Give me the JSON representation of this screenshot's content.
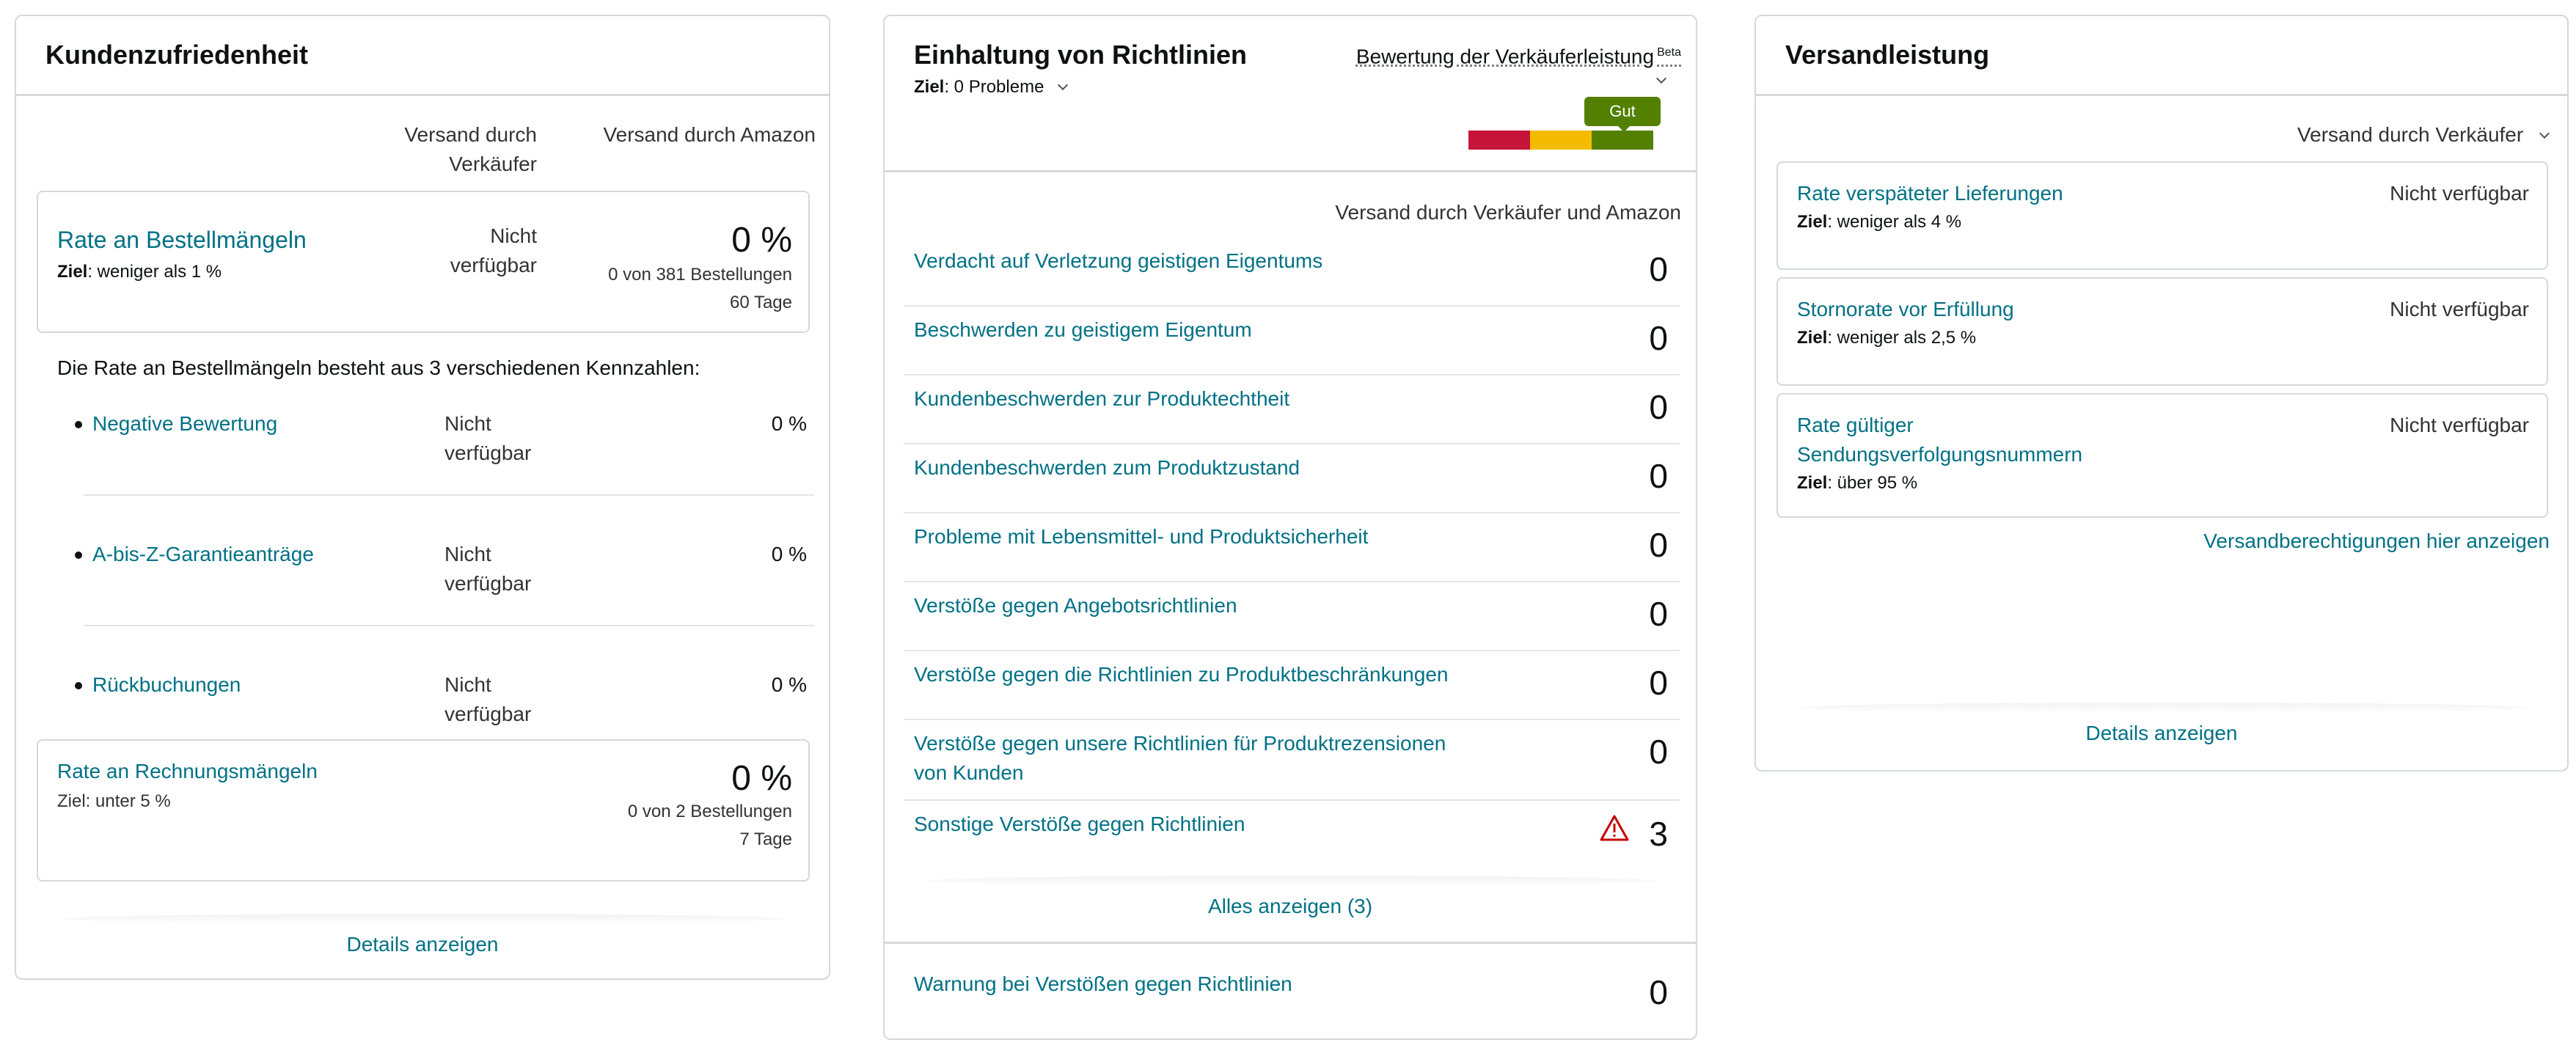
{
  "customer": {
    "title": "Kundenzufriedenheit",
    "col_seller": [
      "Versand durch",
      "Verkäufer"
    ],
    "col_amazon": "Versand durch Amazon",
    "odr": {
      "label": "Rate an Bestellmängeln",
      "target_label": "Ziel",
      "target_value": ": weniger als 1 %",
      "seller_value": [
        "Nicht",
        "verfügbar"
      ],
      "amazon_value": "0 %",
      "orders": "0 von 381 Bestellungen",
      "period": "60 Tage"
    },
    "composition_text": "Die Rate an Bestellmängeln besteht aus 3 verschiedenen Kennzahlen:",
    "metrics": [
      {
        "label": "Negative Bewertung",
        "seller": [
          "Nicht",
          "verfügbar"
        ],
        "amazon": "0 %"
      },
      {
        "label": "A-bis-Z-Garantieanträge",
        "seller": [
          "Nicht",
          "verfügbar"
        ],
        "amazon": "0 %"
      },
      {
        "label": "Rückbuchungen",
        "seller": [
          "Nicht",
          "verfügbar"
        ],
        "amazon": "0 %"
      }
    ],
    "invoice": {
      "label": "Rate an Rechnungsmängeln",
      "target": "Ziel: unter 5 %",
      "value": "0 %",
      "orders": "0 von 2 Bestellungen",
      "period": "7 Tage"
    },
    "details_link": "Details anzeigen"
  },
  "policy": {
    "title": "Einhaltung von Richtlinien",
    "target_label": "Ziel",
    "target_value": ": 0 Probleme",
    "rating_label": "Bewertung der Verkäuferleistung",
    "beta": "Beta",
    "rating_badge": "Gut",
    "rating_level": "Gut",
    "bar_colors": [
      "#c7143a",
      "#f5bb00",
      "#538000"
    ],
    "column_header": "Versand durch Verkäufer und Amazon",
    "items": [
      {
        "label": [
          "Verdacht auf Verletzung geistigen Eigentums"
        ],
        "value": "0"
      },
      {
        "label": [
          "Beschwerden zu geistigem Eigentum"
        ],
        "value": "0"
      },
      {
        "label": [
          "Kundenbeschwerden zur Produktechtheit"
        ],
        "value": "0"
      },
      {
        "label": [
          "Kundenbeschwerden zum Produktzustand"
        ],
        "value": "0"
      },
      {
        "label": [
          "Probleme mit Lebensmittel- und Produktsicherheit"
        ],
        "value": "0"
      },
      {
        "label": [
          "Verstöße gegen Angebotsrichtlinien"
        ],
        "value": "0"
      },
      {
        "label": [
          "Verstöße gegen die Richtlinien zu Produktbeschränkungen"
        ],
        "value": "0"
      },
      {
        "label": [
          "Verstöße gegen unsere Richtlinien für Produktrezensionen",
          "von Kunden"
        ],
        "value": "0"
      },
      {
        "label": [
          "Sonstige Verstöße gegen Richtlinien"
        ],
        "value": "3",
        "warning": true
      }
    ],
    "show_all": "Alles anzeigen (3)",
    "warning_row": {
      "label": "Warnung bei Verstößen gegen Richtlinien",
      "value": "0"
    }
  },
  "shipping": {
    "title": "Versandleistung",
    "dropdown": "Versand durch Verkäufer",
    "metrics": [
      {
        "label": [
          "Rate verspäteter Lieferungen"
        ],
        "target_label": "Ziel",
        "target_value": ": weniger als 4 %",
        "value": "Nicht verfügbar"
      },
      {
        "label": [
          "Stornorate vor Erfüllung"
        ],
        "target_label": "Ziel",
        "target_value": ": weniger als 2,5 %",
        "value": "Nicht verfügbar"
      },
      {
        "label": [
          "Rate gültiger",
          "Sendungsverfolgungsnummern"
        ],
        "target_label": "Ziel",
        "target_value": ": über 95 %",
        "value": "Nicht verfügbar"
      }
    ],
    "eligibility_link": "Versandberechtigungen hier anzeigen",
    "details_link": "Details anzeigen"
  }
}
